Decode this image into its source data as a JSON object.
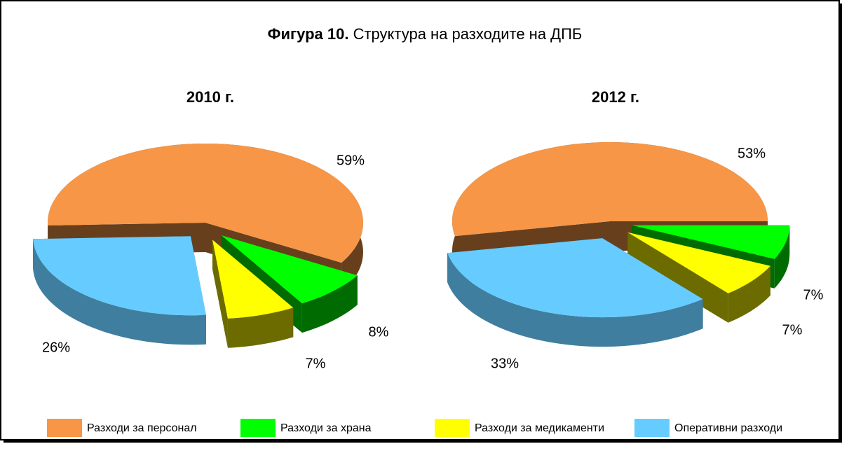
{
  "title_bold": "Фигура 10.",
  "title": "Структура на разходите на ДПБ",
  "chart_data": [
    {
      "type": "pie",
      "title": "2010 г.",
      "categories": [
        "Разходи за персонал",
        "Разходи за храна",
        "Разходи за медикаменти",
        "Оперативни разходи"
      ],
      "values": [
        59,
        8,
        7,
        26
      ],
      "value_labels": [
        "59%",
        "8%",
        "7%",
        "26%"
      ],
      "colors": [
        "#f79646",
        "#00ff00",
        "#ffff00",
        "#66ccff"
      ]
    },
    {
      "type": "pie",
      "title": "2012 г.",
      "categories": [
        "Разходи за персонал",
        "Разходи за храна",
        "Разходи за медикаменти",
        "Оперативни разходи"
      ],
      "values": [
        53,
        7,
        7,
        33
      ],
      "value_labels": [
        "53%",
        "7%",
        "7%",
        "33%"
      ],
      "colors": [
        "#f79646",
        "#00ff00",
        "#ffff00",
        "#66ccff"
      ]
    }
  ]
}
